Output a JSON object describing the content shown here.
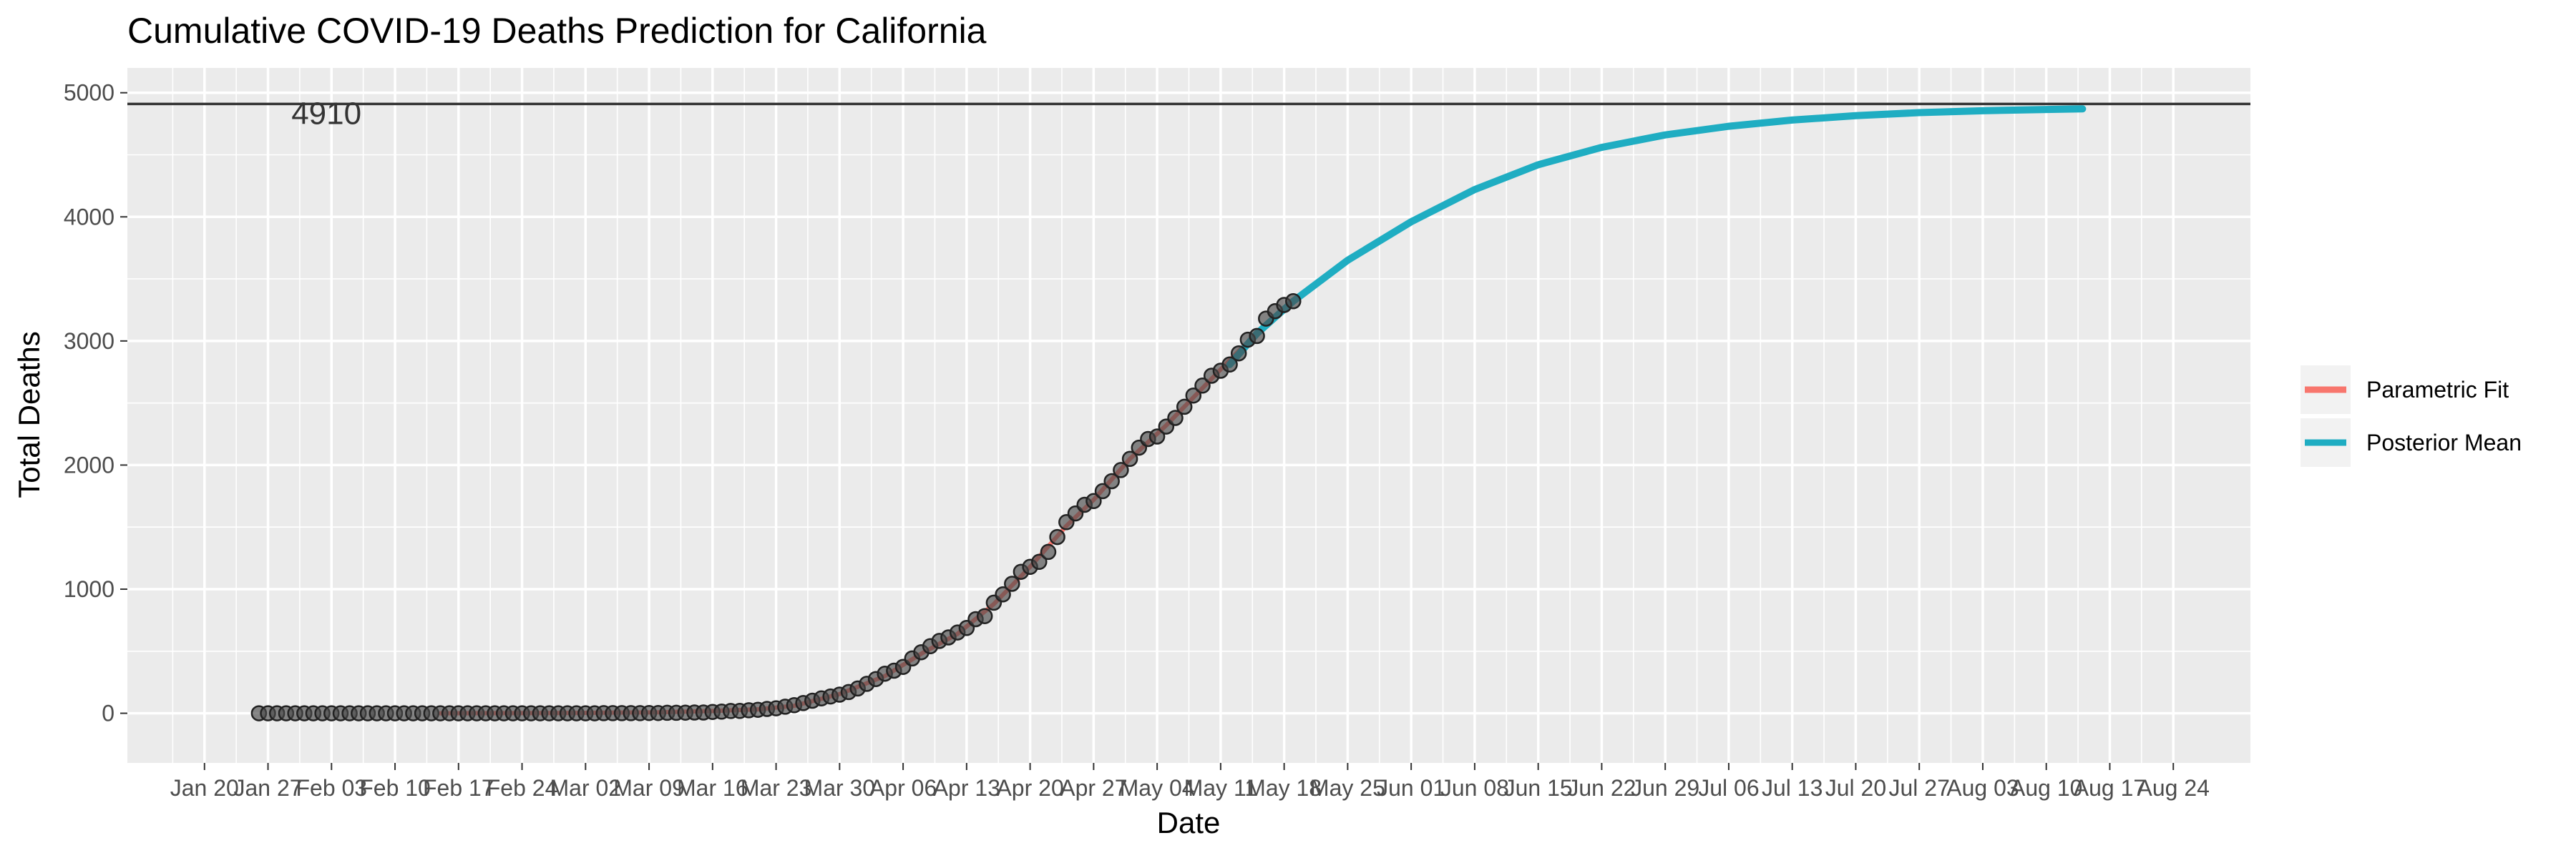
{
  "chart_data": {
    "type": "line",
    "title": "Cumulative COVID-19 Deaths Prediction for California",
    "xlabel": "Date",
    "ylabel": "Total Deaths",
    "x_start": "2020-01-20",
    "x_end": "2020-08-24",
    "ylim": [
      -400,
      5200
    ],
    "y_ticks": [
      0,
      1000,
      2000,
      3000,
      4000,
      5000
    ],
    "x_ticks": [
      "Jan 20",
      "Jan 27",
      "Feb 03",
      "Feb 10",
      "Feb 17",
      "Feb 24",
      "Mar 02",
      "Mar 09",
      "Mar 16",
      "Mar 23",
      "Mar 30",
      "Apr 06",
      "Apr 13",
      "Apr 20",
      "Apr 27",
      "May 04",
      "May 11",
      "May 18",
      "May 25",
      "Jun 01",
      "Jun 08",
      "Jun 15",
      "Jun 22",
      "Jun 29",
      "Jul 06",
      "Jul 13",
      "Jul 20",
      "Jul 27",
      "Aug 03",
      "Aug 10",
      "Aug 17",
      "Aug 24"
    ],
    "grid": true,
    "legend_position": "right",
    "hline": {
      "value": 4910,
      "label": "4910",
      "color": "#333333"
    },
    "observed": {
      "color": "#4a4a4a",
      "points": [
        [
          "2020-01-26",
          0
        ],
        [
          "2020-01-27",
          0
        ],
        [
          "2020-01-28",
          0
        ],
        [
          "2020-01-29",
          0
        ],
        [
          "2020-01-30",
          0
        ],
        [
          "2020-01-31",
          0
        ],
        [
          "2020-02-01",
          0
        ],
        [
          "2020-02-02",
          0
        ],
        [
          "2020-02-03",
          0
        ],
        [
          "2020-02-04",
          0
        ],
        [
          "2020-02-05",
          0
        ],
        [
          "2020-02-06",
          0
        ],
        [
          "2020-02-07",
          0
        ],
        [
          "2020-02-08",
          0
        ],
        [
          "2020-02-09",
          0
        ],
        [
          "2020-02-10",
          0
        ],
        [
          "2020-02-11",
          0
        ],
        [
          "2020-02-12",
          0
        ],
        [
          "2020-02-13",
          0
        ],
        [
          "2020-02-14",
          0
        ],
        [
          "2020-02-15",
          0
        ],
        [
          "2020-02-16",
          0
        ],
        [
          "2020-02-17",
          0
        ],
        [
          "2020-02-18",
          0
        ],
        [
          "2020-02-19",
          0
        ],
        [
          "2020-02-20",
          0
        ],
        [
          "2020-02-21",
          0
        ],
        [
          "2020-02-22",
          0
        ],
        [
          "2020-02-23",
          0
        ],
        [
          "2020-02-24",
          0
        ],
        [
          "2020-02-25",
          0
        ],
        [
          "2020-02-26",
          0
        ],
        [
          "2020-02-27",
          0
        ],
        [
          "2020-02-28",
          0
        ],
        [
          "2020-02-29",
          0
        ],
        [
          "2020-03-01",
          0
        ],
        [
          "2020-03-02",
          0
        ],
        [
          "2020-03-03",
          0
        ],
        [
          "2020-03-04",
          1
        ],
        [
          "2020-03-05",
          1
        ],
        [
          "2020-03-06",
          1
        ],
        [
          "2020-03-07",
          1
        ],
        [
          "2020-03-08",
          1
        ],
        [
          "2020-03-09",
          2
        ],
        [
          "2020-03-10",
          2
        ],
        [
          "2020-03-11",
          4
        ],
        [
          "2020-03-12",
          4
        ],
        [
          "2020-03-13",
          5
        ],
        [
          "2020-03-14",
          6
        ],
        [
          "2020-03-15",
          6
        ],
        [
          "2020-03-16",
          11
        ],
        [
          "2020-03-17",
          13
        ],
        [
          "2020-03-18",
          18
        ],
        [
          "2020-03-19",
          19
        ],
        [
          "2020-03-20",
          24
        ],
        [
          "2020-03-21",
          28
        ],
        [
          "2020-03-22",
          35
        ],
        [
          "2020-03-23",
          40
        ],
        [
          "2020-03-24",
          53
        ],
        [
          "2020-03-25",
          65
        ],
        [
          "2020-03-26",
          82
        ],
        [
          "2020-03-27",
          101
        ],
        [
          "2020-03-28",
          120
        ],
        [
          "2020-03-29",
          135
        ],
        [
          "2020-03-30",
          150
        ],
        [
          "2020-03-31",
          171
        ],
        [
          "2020-04-01",
          200
        ],
        [
          "2020-04-02",
          237
        ],
        [
          "2020-04-03",
          276
        ],
        [
          "2020-04-04",
          319
        ],
        [
          "2020-04-05",
          343
        ],
        [
          "2020-04-06",
          374
        ],
        [
          "2020-04-07",
          442
        ],
        [
          "2020-04-08",
          492
        ],
        [
          "2020-04-09",
          540
        ],
        [
          "2020-04-10",
          583
        ],
        [
          "2020-04-11",
          611
        ],
        [
          "2020-04-12",
          651
        ],
        [
          "2020-04-13",
          687
        ],
        [
          "2020-04-14",
          758
        ],
        [
          "2020-04-15",
          783
        ],
        [
          "2020-04-16",
          891
        ],
        [
          "2020-04-17",
          958
        ],
        [
          "2020-04-18",
          1043
        ],
        [
          "2020-04-19",
          1140
        ],
        [
          "2020-04-20",
          1180
        ],
        [
          "2020-04-21",
          1220
        ],
        [
          "2020-04-22",
          1300
        ],
        [
          "2020-04-23",
          1420
        ],
        [
          "2020-04-24",
          1540
        ],
        [
          "2020-04-25",
          1610
        ],
        [
          "2020-04-26",
          1680
        ],
        [
          "2020-04-27",
          1710
        ],
        [
          "2020-04-28",
          1790
        ],
        [
          "2020-04-29",
          1870
        ],
        [
          "2020-04-30",
          1960
        ],
        [
          "2020-05-01",
          2050
        ],
        [
          "2020-05-02",
          2140
        ],
        [
          "2020-05-03",
          2210
        ],
        [
          "2020-05-04",
          2230
        ],
        [
          "2020-05-05",
          2310
        ],
        [
          "2020-05-06",
          2380
        ],
        [
          "2020-05-07",
          2470
        ],
        [
          "2020-05-08",
          2560
        ],
        [
          "2020-05-09",
          2640
        ],
        [
          "2020-05-10",
          2720
        ],
        [
          "2020-05-11",
          2760
        ],
        [
          "2020-05-12",
          2810
        ],
        [
          "2020-05-13",
          2900
        ],
        [
          "2020-05-14",
          3010
        ],
        [
          "2020-05-15",
          3040
        ],
        [
          "2020-05-16",
          3180
        ],
        [
          "2020-05-17",
          3240
        ],
        [
          "2020-05-18",
          3290
        ],
        [
          "2020-05-19",
          3320
        ]
      ]
    },
    "series": [
      {
        "name": "Parametric Fit",
        "color": "#F8766D",
        "points": [
          [
            "2020-02-15",
            0
          ],
          [
            "2020-03-01",
            3
          ],
          [
            "2020-03-10",
            8
          ],
          [
            "2020-03-16",
            18
          ],
          [
            "2020-03-21",
            32
          ],
          [
            "2020-03-25",
            60
          ],
          [
            "2020-03-30",
            155
          ],
          [
            "2020-04-04",
            300
          ],
          [
            "2020-04-08",
            480
          ],
          [
            "2020-04-12",
            640
          ],
          [
            "2020-04-16",
            880
          ],
          [
            "2020-04-20",
            1180
          ],
          [
            "2020-04-24",
            1510
          ],
          [
            "2020-04-27",
            1720
          ],
          [
            "2020-05-01",
            2050
          ],
          [
            "2020-05-05",
            2320
          ],
          [
            "2020-05-09",
            2620
          ],
          [
            "2020-05-13",
            2920
          ],
          [
            "2020-05-15",
            3060
          ]
        ]
      },
      {
        "name": "Posterior Mean",
        "color": "#1FADC2",
        "points": [
          [
            "2020-05-12",
            2810
          ],
          [
            "2020-05-15",
            3060
          ],
          [
            "2020-05-19",
            3320
          ],
          [
            "2020-05-25",
            3650
          ],
          [
            "2020-06-01",
            3960
          ],
          [
            "2020-06-08",
            4220
          ],
          [
            "2020-06-15",
            4420
          ],
          [
            "2020-06-22",
            4560
          ],
          [
            "2020-06-29",
            4660
          ],
          [
            "2020-07-06",
            4730
          ],
          [
            "2020-07-13",
            4780
          ],
          [
            "2020-07-20",
            4815
          ],
          [
            "2020-07-27",
            4840
          ],
          [
            "2020-08-03",
            4855
          ],
          [
            "2020-08-10",
            4865
          ],
          [
            "2020-08-14",
            4870
          ]
        ]
      }
    ]
  }
}
